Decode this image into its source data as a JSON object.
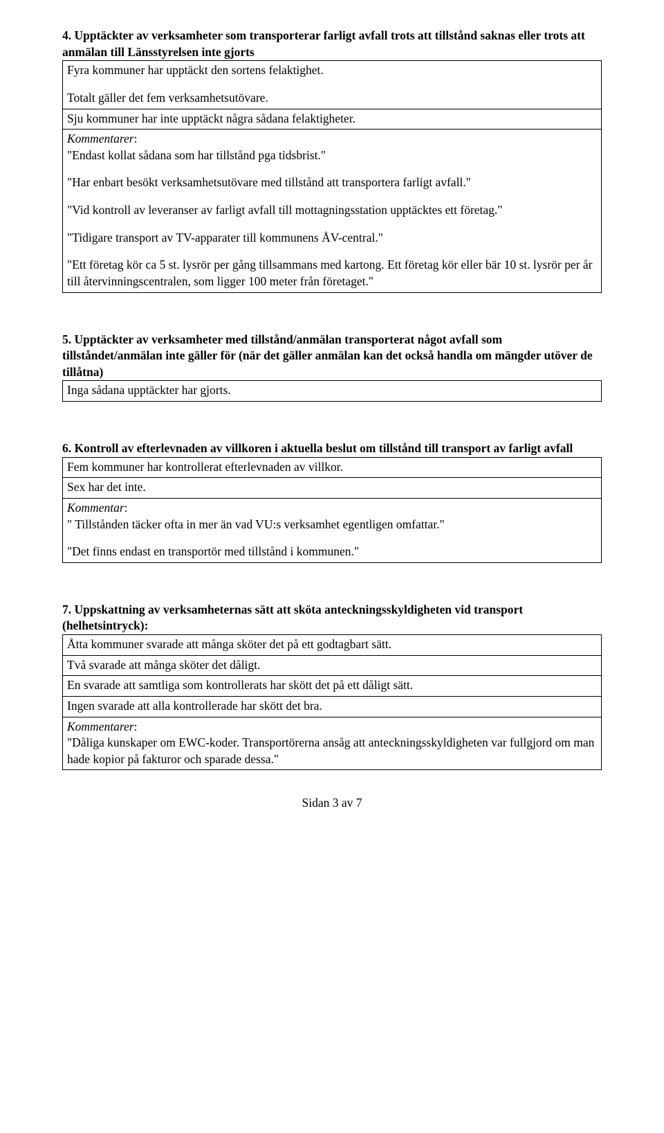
{
  "sections": {
    "s4": {
      "heading": "4. Upptäckter av verksamheter som transporterar farligt avfall trots att tillstånd saknas eller trots att anmälan till Länsstyrelsen inte gjorts",
      "box1": {
        "p1": "Fyra kommuner har upptäckt den sortens felaktighet.",
        "p2": "Totalt gäller det fem verksamhetsutövare."
      },
      "box2": "Sju kommuner har inte upptäckt några sådana felaktigheter.",
      "box3": {
        "label": "Kommentarer",
        "q1": "\"Endast kollat sådana som har tillstånd pga tidsbrist.\"",
        "q2": "\"Har enbart besökt verksamhetsutövare med tillstånd att transportera farligt avfall.\"",
        "q3": "\"Vid kontroll av leveranser av farligt avfall till mottagningsstation upptäcktes ett företag.\"",
        "q4": "\"Tidigare transport av TV-apparater till kommunens ÅV-central.\"",
        "q5": "\"Ett företag kör ca 5 st. lysrör per gång tillsammans med kartong. Ett företag kör eller bär 10 st. lysrör per år till återvinningscentralen, som ligger 100 meter från företaget.\""
      }
    },
    "s5": {
      "heading": "5. Upptäckter av verksamheter med tillstånd/anmälan transporterat något avfall som tillståndet/anmälan inte gäller för (när det gäller anmälan kan det också handla om mängder utöver de tillåtna)",
      "box1": "Inga sådana upptäckter har gjorts."
    },
    "s6": {
      "heading": "6. Kontroll av efterlevnaden av villkoren i aktuella beslut om tillstånd till transport av farligt avfall",
      "box1": "Fem kommuner har kontrollerat efterlevnaden av villkor.",
      "box2": "Sex har det inte.",
      "box3": {
        "label": "Kommentar",
        "q1": "\" Tillstånden täcker ofta in mer än vad VU:s verksamhet egentligen omfattar.\"",
        "q2": "\"Det finns endast en transportör med tillstånd i kommunen.\""
      }
    },
    "s7": {
      "heading": "7. Uppskattning av verksamheternas sätt att sköta anteckningsskyldigheten vid transport (helhetsintryck):",
      "box1": "Åtta kommuner svarade att många sköter det på ett godtagbart sätt.",
      "box2": "Två svarade att många sköter det dåligt.",
      "box3": "En svarade att samtliga som kontrollerats har skött det på ett dåligt sätt.",
      "box4": "Ingen svarade att alla kontrollerade har skött det bra.",
      "box5": {
        "label": "Kommentarer",
        "q1": "\"Dåliga kunskaper om EWC-koder. Transportörerna ansåg att anteckningsskyldigheten var fullgjord om man hade kopior på fakturor och sparade dessa.\""
      }
    }
  },
  "footer": "Sidan 3 av 7"
}
